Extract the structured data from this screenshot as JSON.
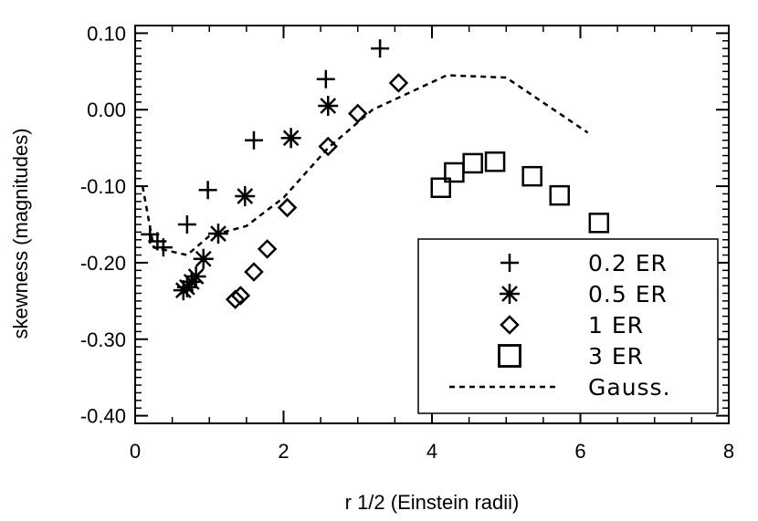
{
  "chart_data": {
    "type": "scatter",
    "xlabel": "r 1/2 (Einstein radii)",
    "ylabel": "skewness (magnitudes)",
    "xlim": [
      0,
      8
    ],
    "ylim": [
      -0.41,
      0.11
    ],
    "x_ticks": [
      0,
      2,
      4,
      6,
      8
    ],
    "x_tick_labels": [
      "0",
      "2",
      "4",
      "6",
      "8"
    ],
    "y_ticks": [
      0.1,
      0.0,
      -0.1,
      -0.2,
      -0.3,
      -0.4
    ],
    "y_tick_labels": [
      "0.10",
      "0.00",
      "-0.10",
      "-0.20",
      "-0.30",
      "-0.40"
    ],
    "grid": false,
    "legend_position": "bottom-right",
    "colors": {
      "ink": "#000000",
      "background": "#ffffff"
    },
    "series": [
      {
        "name": "0.2 ER",
        "marker": "plus",
        "x": [
          0.2,
          0.3,
          0.38,
          0.7,
          0.98,
          1.6,
          2.57,
          3.3
        ],
        "y": [
          -0.163,
          -0.172,
          -0.18,
          -0.15,
          -0.105,
          -0.04,
          0.04,
          0.08
        ]
      },
      {
        "name": "0.5 ER",
        "marker": "asterisk",
        "x": [
          0.65,
          0.7,
          0.76,
          0.82,
          0.92,
          1.12,
          1.48,
          2.1,
          2.6
        ],
        "y": [
          -0.236,
          -0.232,
          -0.225,
          -0.218,
          -0.195,
          -0.162,
          -0.113,
          -0.037,
          0.005
        ]
      },
      {
        "name": "1 ER",
        "marker": "diamond",
        "x": [
          1.35,
          1.42,
          1.6,
          1.78,
          2.05,
          2.6,
          3.0,
          3.55
        ],
        "y": [
          -0.248,
          -0.243,
          -0.212,
          -0.182,
          -0.128,
          -0.048,
          -0.005,
          0.035
        ]
      },
      {
        "name": "3 ER",
        "marker": "square",
        "x": [
          4.12,
          4.3,
          4.55,
          4.85,
          5.35,
          5.72,
          6.25
        ],
        "y": [
          -0.102,
          -0.082,
          -0.07,
          -0.068,
          -0.087,
          -0.112,
          -0.148
        ]
      },
      {
        "name": "Gauss.",
        "marker": "dashed-line",
        "x": [
          0.1,
          0.25,
          0.7,
          1.0,
          1.5,
          2.0,
          2.6,
          3.2,
          4.2,
          5.0,
          6.1
        ],
        "y": [
          -0.1,
          -0.18,
          -0.19,
          -0.165,
          -0.152,
          -0.115,
          -0.05,
          0.0,
          0.045,
          0.042,
          -0.03
        ]
      }
    ]
  }
}
